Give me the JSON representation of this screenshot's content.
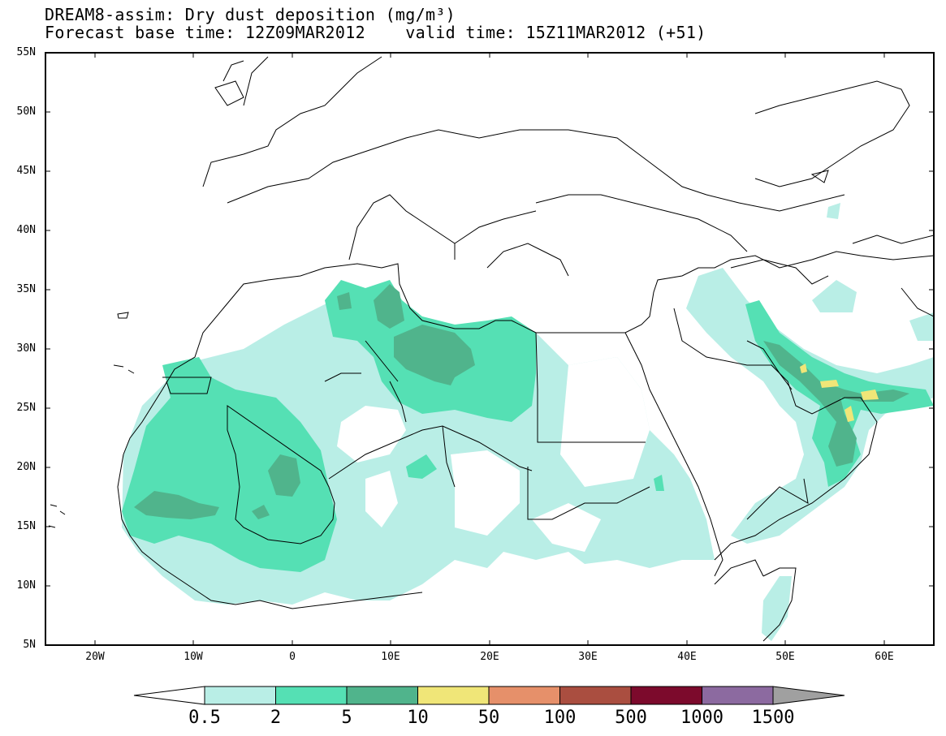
{
  "title": {
    "line1": "DREAM8-assim: Dry dust deposition (mg/m³)",
    "line2": "Forecast base time: 12Z09MAR2012    valid time: 15Z11MAR2012 (+51)"
  },
  "map": {
    "projection": "lat-lon",
    "lon_range": [
      -25,
      65
    ],
    "lat_range": [
      5,
      55
    ],
    "lat_labels": [
      "55N",
      "50N",
      "45N",
      "40N",
      "35N",
      "30N",
      "25N",
      "20N",
      "15N",
      "10N",
      "5N"
    ],
    "lon_labels": [
      "20W",
      "10W",
      "0",
      "10E",
      "20E",
      "30E",
      "40E",
      "50E",
      "60E"
    ]
  },
  "colorbar": {
    "labels": [
      "0.5",
      "2",
      "5",
      "10",
      "50",
      "100",
      "500",
      "1000",
      "1500"
    ],
    "colors": [
      "#b9eee6",
      "#55e0b4",
      "#50b48c",
      "#f0e678",
      "#e6906a",
      "#aa4e40",
      "#7c0a2c",
      "#8c6aa0"
    ],
    "under_color": "#ffffff",
    "over_color": "#a0a0a0"
  }
}
